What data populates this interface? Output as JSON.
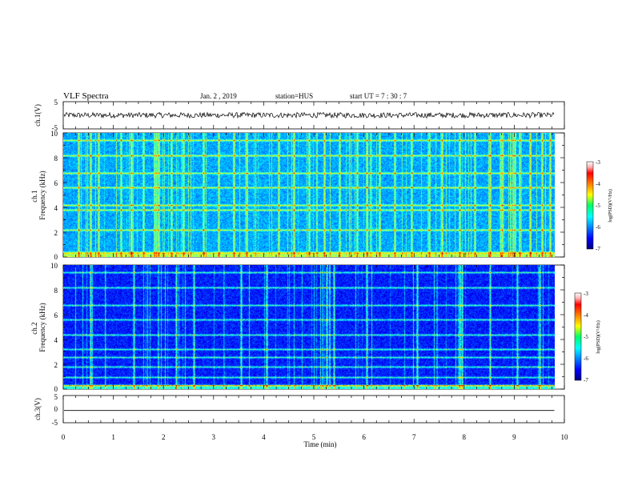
{
  "header": {
    "title": "VLF Spectra",
    "date": "Jan.  2  , 2019",
    "station": "station=HUS",
    "start": "start  UT  =    7  : 30 : 7"
  },
  "chart_data": [
    {
      "type": "line",
      "panel": "ch1-waveform",
      "ylabel": "ch.1(V)",
      "ylim": [
        -5,
        5
      ],
      "yticks": [
        "5",
        "-5"
      ],
      "xlim": [
        0,
        10
      ],
      "data_xlim": [
        0,
        9.8
      ],
      "series_level": 0.05,
      "series_noise": 0.25
    },
    {
      "type": "heatmap",
      "panel": "ch1-spectrogram",
      "ylabel": "ch.1\nFrequency  (kHz)",
      "ylim": [
        0,
        10
      ],
      "yticks": [
        "0",
        "2",
        "4",
        "6",
        "8",
        "10"
      ],
      "xlim": [
        0,
        10
      ],
      "data_xlim": [
        0,
        9.8
      ],
      "colorscale": "jet",
      "clim": [
        -7,
        -3
      ],
      "colorbar_ticks": [
        "-3",
        "-4",
        "-5",
        "-6",
        "-7"
      ],
      "colorbar_label": "log(PSD)(V²/Hz)",
      "background_level": 0.22,
      "horizontal_lines_khz": [
        0.4,
        2.2,
        3.8,
        4.2,
        5.6,
        6.8,
        8.2,
        9.4
      ],
      "vertical_bursts_min": [
        0.3,
        0.55,
        0.7,
        1.15,
        1.35,
        1.6,
        1.9,
        2.15,
        2.4,
        2.8,
        3.1,
        3.4,
        3.65,
        4.3,
        4.6,
        4.9,
        5.2,
        5.5,
        5.85,
        6.05,
        6.3,
        6.6,
        6.95,
        7.3,
        7.55,
        7.9,
        8.2,
        8.5,
        8.75,
        9.0,
        9.1,
        9.3,
        9.55,
        9.7
      ]
    },
    {
      "type": "heatmap",
      "panel": "ch2-spectrogram",
      "ylabel": "ch.2\nFrequency  (kHz)",
      "ylim": [
        0,
        10
      ],
      "yticks": [
        "0",
        "2",
        "4",
        "6",
        "8",
        "10"
      ],
      "xlim": [
        0,
        10
      ],
      "data_xlim": [
        0,
        9.8
      ],
      "colorscale": "jet",
      "clim": [
        -7,
        -3
      ],
      "colorbar_ticks": [
        "-3",
        "-4",
        "-5",
        "-6",
        "-7"
      ],
      "colorbar_label": "log(PSD)(V²/Hz)",
      "background_level": 0.08,
      "horizontal_lines_khz": [
        0.3,
        1.0,
        1.8,
        2.6,
        3.2,
        4.4,
        5.6,
        6.8,
        8.2,
        9.4
      ],
      "vertical_bursts_min": [
        0.55,
        1.4,
        2.25,
        2.6,
        3.55,
        4.05,
        5.25,
        5.4,
        6.05,
        7.05,
        7.9,
        7.95,
        8.5,
        9.05,
        9.5
      ]
    },
    {
      "type": "line",
      "panel": "ch3-waveform",
      "ylabel": "ch.3(V)",
      "ylim": [
        -5,
        5
      ],
      "yticks": [
        "5",
        "0",
        "-5"
      ],
      "xlim": [
        0,
        10
      ],
      "data_xlim": [
        0,
        9.8
      ],
      "series_level": -0.5,
      "series_noise": 0.0
    }
  ],
  "xaxis": {
    "label": "Time  (min)",
    "ticks": [
      "0",
      "1",
      "2",
      "3",
      "4",
      "5",
      "6",
      "7",
      "8",
      "9",
      "10"
    ]
  }
}
